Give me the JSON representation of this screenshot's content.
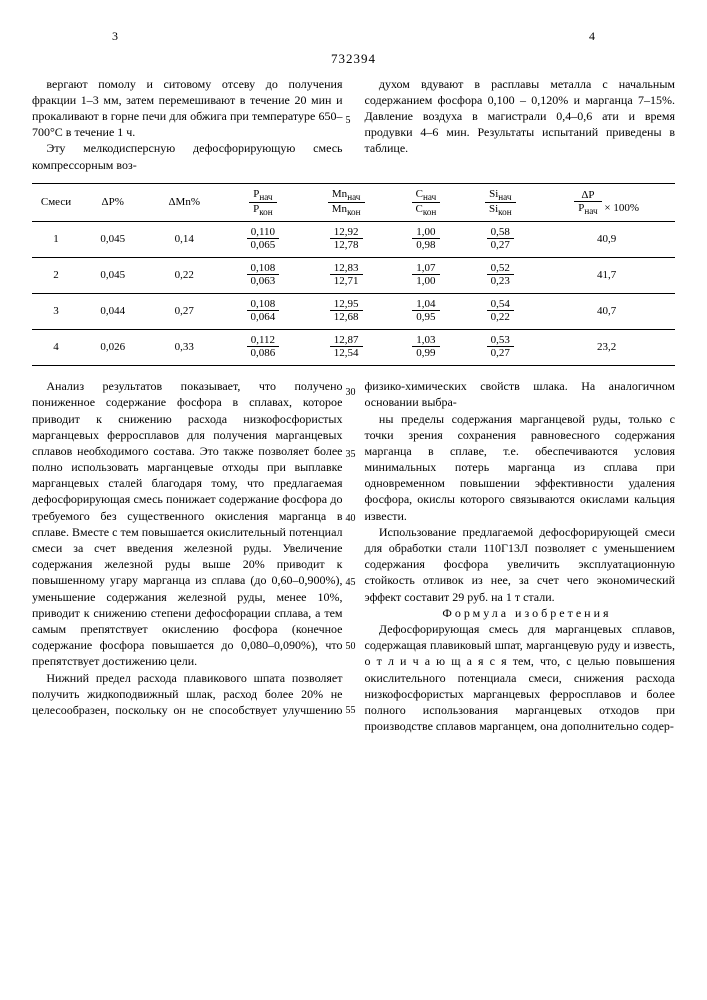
{
  "page": {
    "left_num": "3",
    "right_num": "4",
    "doc_number": "732394"
  },
  "top_left": "вергают помолу и ситовому отсеву до получения фракции 1–3 мм, затем перемешивают в течение 20 мин и прокаливают в горне печи для обжига при температуре 650–700°С в течение 1 ч.",
  "top_left2": "Эту мелкодисперсную дефосфорирующую смесь компрессорным воз-",
  "top_right": "духом вдувают в расплавы металла с начальным содержанием фосфора 0,100 – 0,120% и марганца 7–15%. Давление воздуха в магистрали 0,4–0,6 ати и время продувки 4–6 мин. Результаты испытаний приведены в таблице.",
  "lineno5": "5",
  "table": {
    "headers": [
      "Смеси",
      "ΔP%",
      "ΔMn%",
      "Pнач / Pкон",
      "Mnнач / Mnкон",
      "Cнач / Cкон",
      "Siнач / Siкон",
      "ΔP / Pнач × 100%"
    ],
    "rows": [
      {
        "n": "1",
        "dP": "0,045",
        "dMn": "0,14",
        "P": {
          "t": "0,110",
          "b": "0,065"
        },
        "Mn": {
          "t": "12,92",
          "b": "12,78"
        },
        "C": {
          "t": "1,00",
          "b": "0,98"
        },
        "Si": {
          "t": "0,58",
          "b": "0,27"
        },
        "pct": "40,9"
      },
      {
        "n": "2",
        "dP": "0,045",
        "dMn": "0,22",
        "P": {
          "t": "0,108",
          "b": "0,063"
        },
        "Mn": {
          "t": "12,83",
          "b": "12,71"
        },
        "C": {
          "t": "1,07",
          "b": "1,00"
        },
        "Si": {
          "t": "0,52",
          "b": "0,23"
        },
        "pct": "41,7"
      },
      {
        "n": "3",
        "dP": "0,044",
        "dMn": "0,27",
        "P": {
          "t": "0,108",
          "b": "0,064"
        },
        "Mn": {
          "t": "12,95",
          "b": "12,68"
        },
        "C": {
          "t": "1,04",
          "b": "0,95"
        },
        "Si": {
          "t": "0,54",
          "b": "0,22"
        },
        "pct": "40,7"
      },
      {
        "n": "4",
        "dP": "0,026",
        "dMn": "0,33",
        "P": {
          "t": "0,112",
          "b": "0,086"
        },
        "Mn": {
          "t": "12,87",
          "b": "12,54"
        },
        "C": {
          "t": "1,03",
          "b": "0,99"
        },
        "Si": {
          "t": "0,53",
          "b": "0,27"
        },
        "pct": "23,2"
      }
    ]
  },
  "body_left": [
    "Анализ результатов показывает, что получено пониженное содержание фосфора в сплавах, которое приводит к снижению расхода низкофосфористых марганцевых ферросплавов для получения марганцевых сплавов необходимого состава. Это также позволяет более полно использовать марганцевые отходы при выплавке марганцевых сталей благодаря тому, что предлагаемая дефосфорирующая смесь понижает содержание фосфора до требуемого без существенного окисления марганца в сплаве. Вместе с тем повышается окислительный потенциал смеси за счет введения железной руды. Увеличение содержания железной руды выше 20% приводит к повышенному угару марганца из сплава (до 0,60–0,900%), уменьшение содержания железной руды, менее 10%, приводит к снижению степени дефосфорации сплава, а тем самым препятствует окислению фосфора (конечное содержание фосфора повышается до 0,080–0,090%), что препятствует достижению цели.",
    "Нижний предел расхода плавикового шпата позволяет получить жидкоподвижный шлак, расход более 20% не целесообразен, поскольку он не способствует улучшению физико-химических свойств шлака. На аналогичном основании выбра-"
  ],
  "body_right": [
    "ны пределы содержания марганцевой руды, только с точки зрения сохранения равновесного содержания марганца в сплаве, т.е. обеспечиваются условия минимальных потерь марганца из сплава при одновременном повышении эффективности удаления фосфора, окислы которого связываются окислами кальция извести.",
    "Использование предлагаемой дефосфорирующей смеси для обработки стали 110Г13Л позволяет с уменьшением содержания фосфора увеличить эксплуатационную стойкость отливок из нее, за счет чего экономический эффект составит 29 руб. на 1 т стали."
  ],
  "formula_head": "Формула изобретения",
  "formula_body": "Дефосфорирующая смесь для марганцевых сплавов, содержащая плавиковый шпат, марганцевую руду и известь, о т л и ч а ю щ а я с я  тем, что, с целью повышения окислительного потенциала смеси, снижения расхода низкофосфористых марганцевых ферросплавов и более полного использования марганцевых отходов при производстве сплавов марганцем, она дополнительно содер-",
  "linenos": {
    "l30": "30",
    "l35": "35",
    "l40": "40",
    "l45": "45",
    "l50": "50",
    "l55": "55"
  }
}
